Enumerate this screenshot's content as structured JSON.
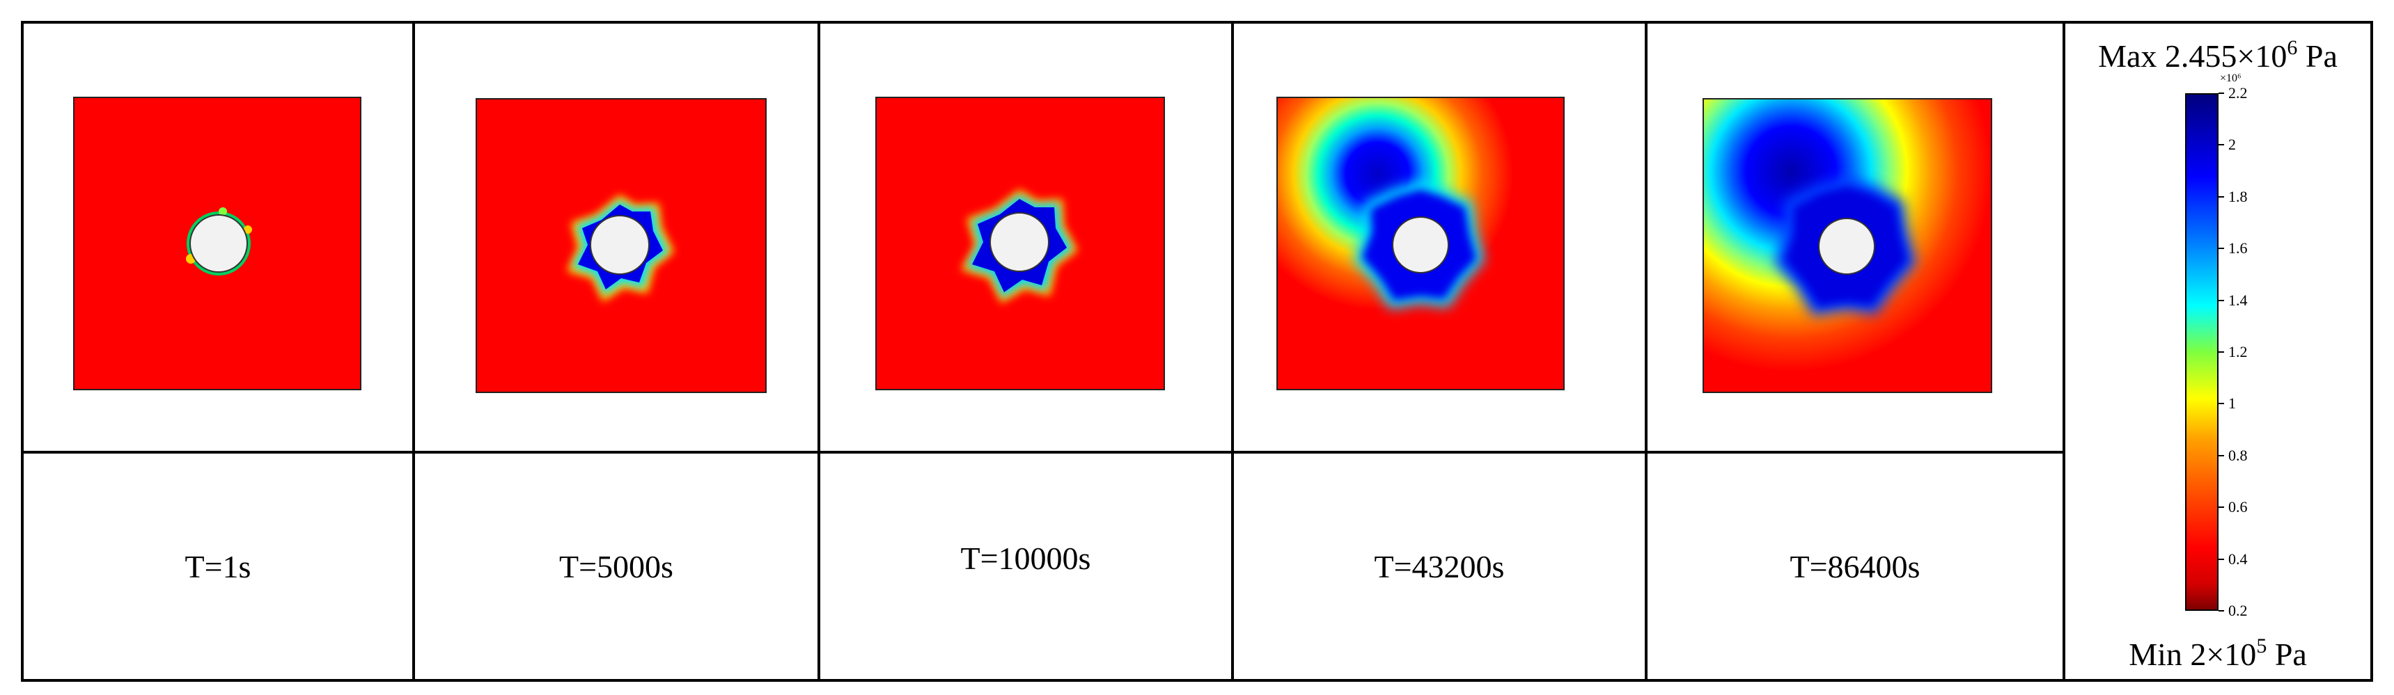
{
  "panels": [
    {
      "label": "T=1s"
    },
    {
      "label": "T=5000s"
    },
    {
      "label": "T=10000s"
    },
    {
      "label": "T=43200s"
    },
    {
      "label": "T=86400s"
    }
  ],
  "colorbar": {
    "max_prefix": "Max 2.455×10",
    "max_exp": "6",
    "max_unit": " Pa",
    "min_prefix": "Min 2×10",
    "min_exp": "5",
    "min_unit": " Pa",
    "multiplier": "×10⁶",
    "ticks": [
      "2.2",
      "2",
      "1.8",
      "1.6",
      "1.4",
      "1.2",
      "1",
      "0.8",
      "0.6",
      "0.4",
      "0.2"
    ],
    "range": [
      0.2,
      2.2
    ],
    "colormap": "jet"
  }
}
